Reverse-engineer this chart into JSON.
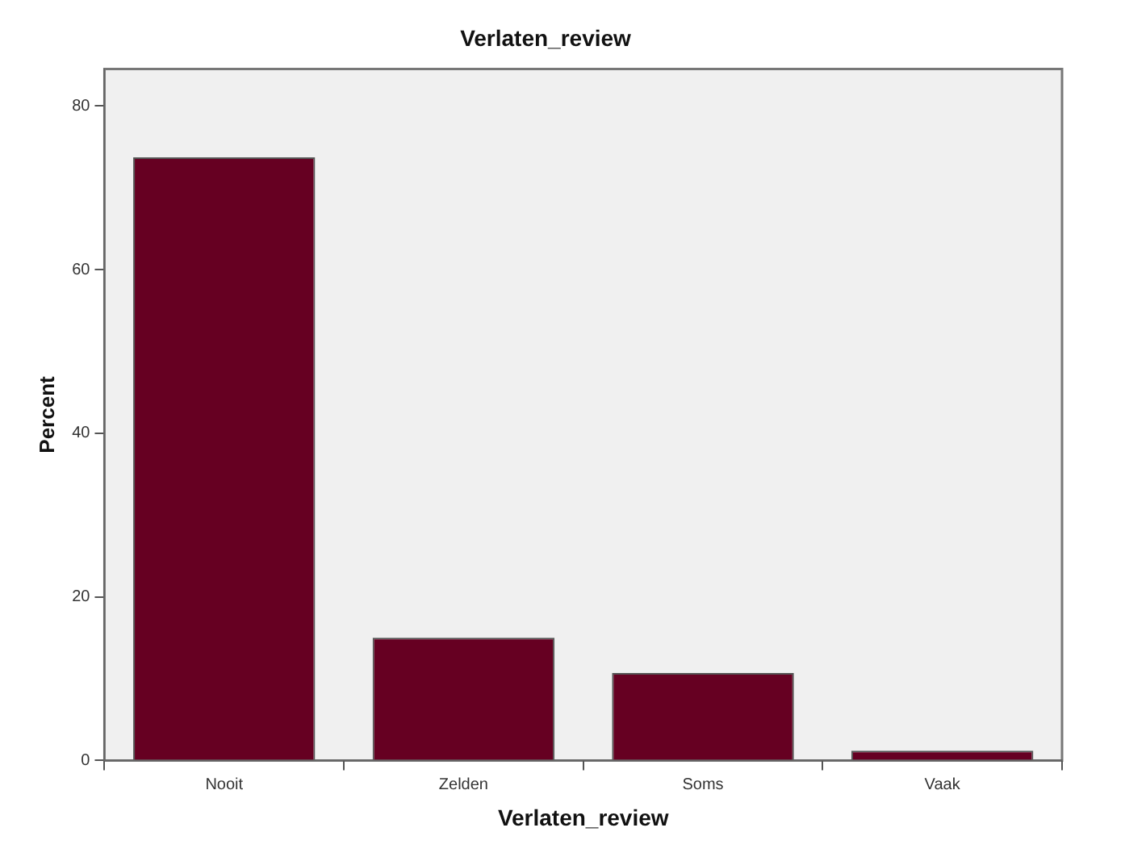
{
  "chart_data": {
    "type": "bar",
    "title": "Verlaten_review",
    "xlabel": "Verlaten_review",
    "ylabel": "Percent",
    "categories": [
      "Nooit",
      "Zelden",
      "Soms",
      "Vaak"
    ],
    "values": [
      73.7,
      15.0,
      10.7,
      1.2
    ],
    "color": "#660022",
    "ylim": [
      0,
      84.5
    ],
    "yticks": [
      0,
      20,
      40,
      60,
      80
    ],
    "grid": false,
    "legend": false
  }
}
